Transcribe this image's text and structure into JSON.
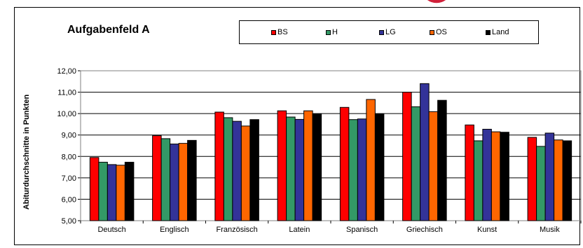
{
  "chart_data": {
    "type": "bar",
    "title": "Aufgabenfeld A",
    "ylabel": "Abiturdurchschnitte in Punkten",
    "xlabel": "",
    "ylim": [
      5,
      12
    ],
    "yticks": [
      "5,00",
      "6,00",
      "7,00",
      "8,00",
      "9,00",
      "10,00",
      "11,00",
      "12,00"
    ],
    "grid": true,
    "legend_position": "top",
    "categories": [
      "Deutsch",
      "Englisch",
      "Französisch",
      "Latein",
      "Spanisch",
      "Griechisch",
      "Kunst",
      "Musik"
    ],
    "series": [
      {
        "name": "BS",
        "color": "#ff0000",
        "values": [
          7.95,
          8.97,
          10.07,
          10.13,
          10.29,
          11.0,
          9.47,
          8.89
        ]
      },
      {
        "name": "H",
        "color": "#339966",
        "values": [
          7.73,
          8.83,
          9.81,
          9.84,
          9.72,
          10.32,
          8.73,
          8.47
        ]
      },
      {
        "name": "LG",
        "color": "#333399",
        "values": [
          7.62,
          8.58,
          9.64,
          9.73,
          9.75,
          11.4,
          9.27,
          9.09
        ]
      },
      {
        "name": "OS",
        "color": "#ff6600",
        "values": [
          7.59,
          8.61,
          9.42,
          10.13,
          10.66,
          10.09,
          9.15,
          8.77
        ]
      },
      {
        "name": "Land",
        "color": "#000000",
        "values": [
          7.73,
          8.75,
          9.72,
          9.99,
          9.99,
          10.62,
          9.13,
          8.73
        ]
      }
    ]
  }
}
